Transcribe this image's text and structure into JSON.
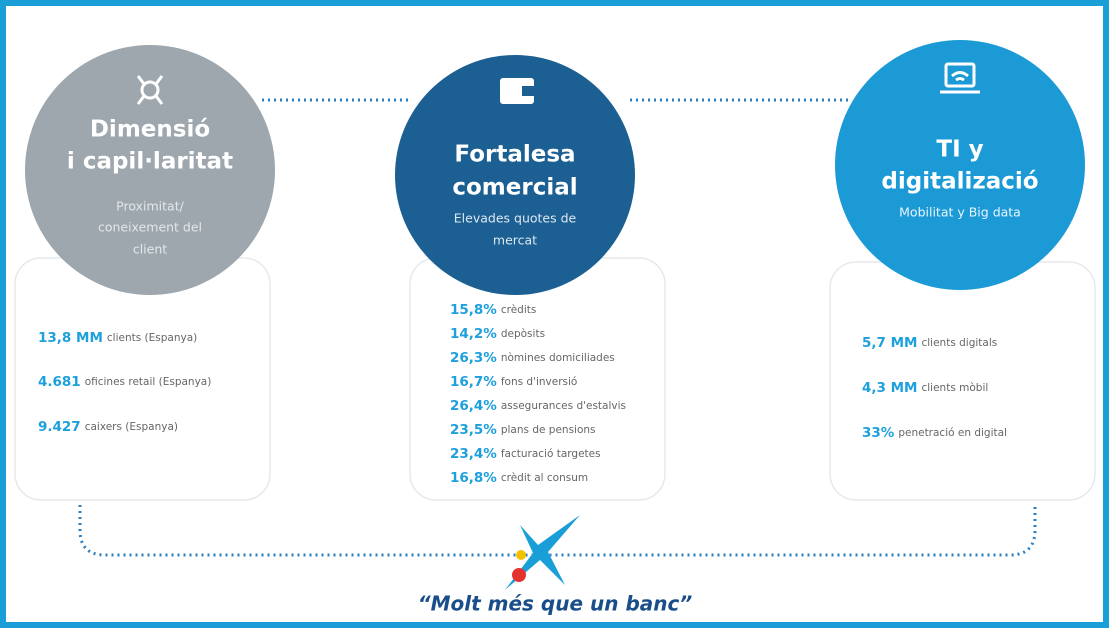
{
  "columns": [
    {
      "title_lines": [
        "Dimensió",
        "i capil·laritat"
      ],
      "subtitle_lines": [
        "Proximitat/",
        "coneixement del",
        "client"
      ],
      "items": [
        {
          "highlight": "13,8 MM",
          "text": "clients (Espanya)"
        },
        {
          "highlight": "4.681",
          "text": "oficines retail (Espanya)"
        },
        {
          "highlight": "9.427",
          "text": "caixers (Espanya)"
        }
      ]
    },
    {
      "title_lines": [
        "Fortalesa",
        "comercial"
      ],
      "subtitle_lines": [
        "Elevades quotes de",
        "mercat"
      ],
      "items": [
        {
          "highlight": "15,8%",
          "text": "crèdits"
        },
        {
          "highlight": "14,2%",
          "text": "depòsits"
        },
        {
          "highlight": "26,3%",
          "text": "nòmines domiciliades"
        },
        {
          "highlight": "16,7%",
          "text": "fons d'inversió"
        },
        {
          "highlight": "26,4%",
          "text": "assegurances d'estalvis"
        },
        {
          "highlight": "23,5%",
          "text": "plans de pensions"
        },
        {
          "highlight": "23,4%",
          "text": "facturació targetes"
        },
        {
          "highlight": "16,8%",
          "text": "crèdit al consum"
        }
      ]
    },
    {
      "title_lines": [
        "TI y",
        "digitalizació"
      ],
      "subtitle_lines": [
        "Mobilitat y Big data"
      ],
      "items": [
        {
          "highlight": "5,7 MM",
          "text": "clients digitals"
        },
        {
          "highlight": "4,3 MM",
          "text": "clients mòbil"
        },
        {
          "highlight": "33%",
          "text": "penetració en digital"
        }
      ]
    }
  ],
  "slogan": "“Molt més que un banc”"
}
